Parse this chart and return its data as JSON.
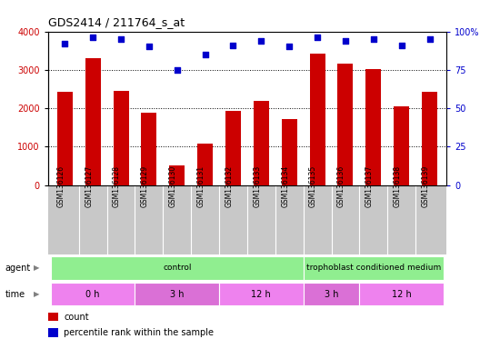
{
  "title": "GDS2414 / 211764_s_at",
  "samples": [
    "GSM136126",
    "GSM136127",
    "GSM136128",
    "GSM136129",
    "GSM136130",
    "GSM136131",
    "GSM136132",
    "GSM136133",
    "GSM136134",
    "GSM136135",
    "GSM136136",
    "GSM136137",
    "GSM136138",
    "GSM136139"
  ],
  "counts": [
    2420,
    3300,
    2460,
    1880,
    500,
    1080,
    1930,
    2200,
    1720,
    3420,
    3150,
    3010,
    2050,
    2430
  ],
  "percentile_ranks": [
    92,
    96,
    95,
    90,
    75,
    85,
    91,
    94,
    90,
    96,
    94,
    95,
    91,
    95
  ],
  "bar_color": "#cc0000",
  "dot_color": "#0000cc",
  "ylim_left": [
    0,
    4000
  ],
  "ylim_right": [
    0,
    100
  ],
  "yticks_left": [
    0,
    1000,
    2000,
    3000,
    4000
  ],
  "yticks_right": [
    0,
    25,
    50,
    75,
    100
  ],
  "background_color": "#ffffff",
  "tick_bg_color": "#c8c8c8",
  "agent_bg_color": "#90ee90",
  "time_colors": [
    "#ee82ee",
    "#da70d6",
    "#ee82ee",
    "#da70d6",
    "#ee82ee"
  ],
  "time_groups": [
    {
      "label": "0 h",
      "start": 0,
      "end": 3
    },
    {
      "label": "3 h",
      "start": 3,
      "end": 6
    },
    {
      "label": "12 h",
      "start": 6,
      "end": 9
    },
    {
      "label": "3 h",
      "start": 9,
      "end": 11
    },
    {
      "label": "12 h",
      "start": 11,
      "end": 14
    }
  ],
  "agent_groups": [
    {
      "label": "control",
      "start": 0,
      "end": 9
    },
    {
      "label": "trophoblast conditioned medium",
      "start": 9,
      "end": 14
    }
  ],
  "legend_count_color": "#cc0000",
  "legend_percentile_color": "#0000cc"
}
